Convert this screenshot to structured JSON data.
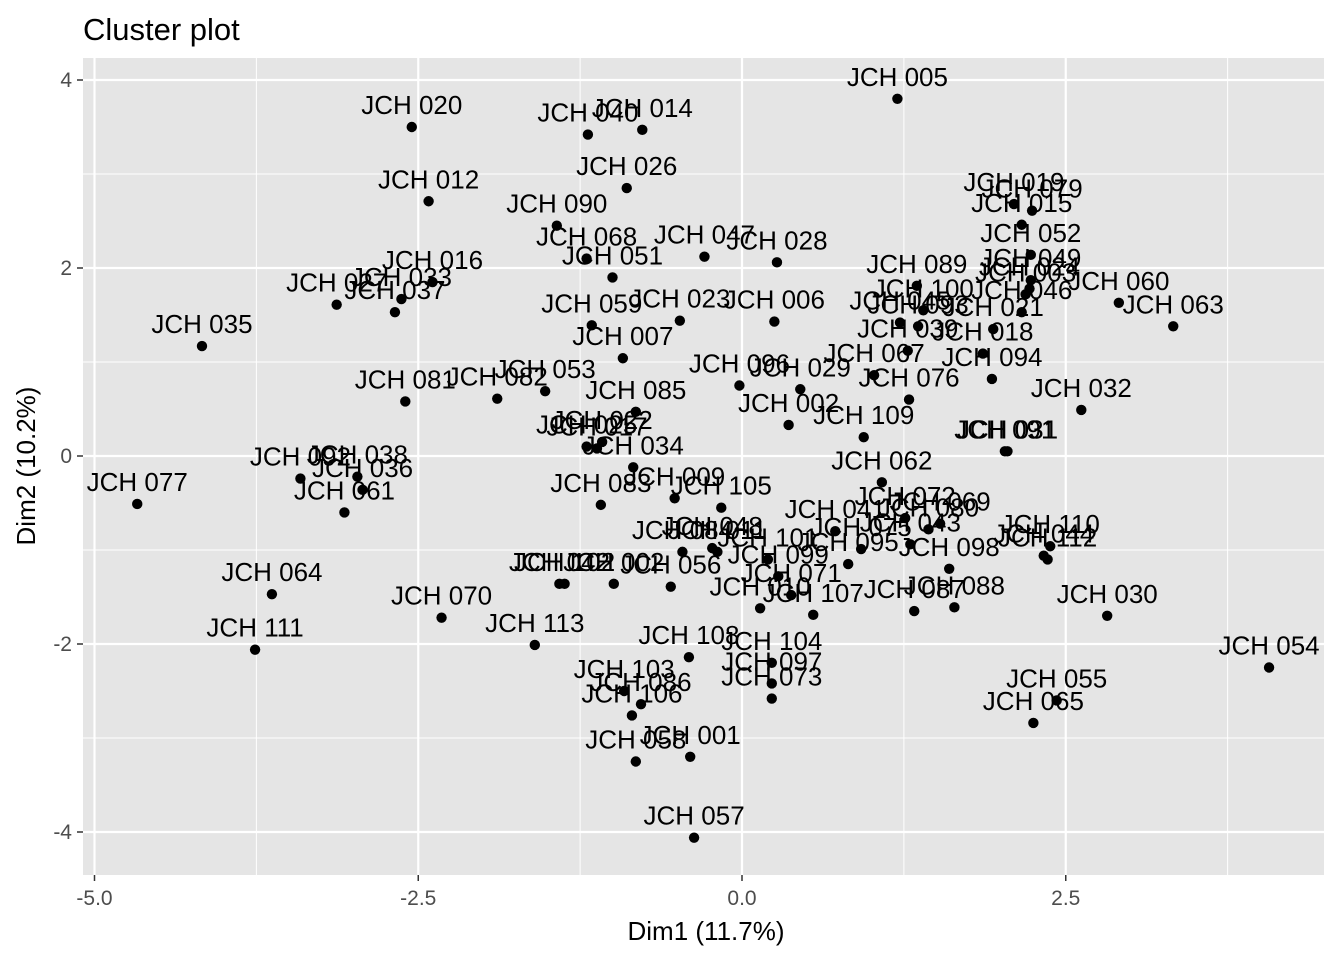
{
  "chart_data": {
    "type": "scatter",
    "title": "Cluster plot",
    "xlabel": "Dim1 (11.7%)",
    "ylabel": "Dim2 (10.2%)",
    "xlim": [
      -5.0,
      4.3
    ],
    "ylim": [
      -4.45,
      4.25
    ],
    "x_ticks": [
      -5.0,
      -2.5,
      0.0,
      2.5
    ],
    "x_tick_labels": [
      "-5.0",
      "-2.5",
      "0.0",
      "2.5"
    ],
    "y_ticks": [
      -4,
      -2,
      0,
      2,
      4
    ],
    "y_tick_labels": [
      "-4",
      "-2",
      "0",
      "2",
      "4"
    ],
    "grid": true,
    "panel_color": "#e5e5e5",
    "grid_color": "#ffffff",
    "point_color": "#000000",
    "points": [
      {
        "label": "JCH 005",
        "x": 1.2,
        "y": 3.8
      },
      {
        "label": "JCH 020",
        "x": -2.55,
        "y": 3.5
      },
      {
        "label": "JCH 014",
        "x": -0.77,
        "y": 3.47
      },
      {
        "label": "JCH 040",
        "x": -1.19,
        "y": 3.42
      },
      {
        "label": "JCH 026",
        "x": -0.89,
        "y": 2.85
      },
      {
        "label": "JCH 012",
        "x": -2.42,
        "y": 2.71
      },
      {
        "label": "JCH 019",
        "x": 2.1,
        "y": 2.68
      },
      {
        "label": "JCH 079",
        "x": 2.24,
        "y": 2.61
      },
      {
        "label": "JCH 015",
        "x": 2.16,
        "y": 2.46
      },
      {
        "label": "JCH 090",
        "x": -1.43,
        "y": 2.45
      },
      {
        "label": "JCH 052",
        "x": 2.23,
        "y": 2.14
      },
      {
        "label": "JCH 047",
        "x": -0.29,
        "y": 2.12
      },
      {
        "label": "JCH 068",
        "x": -1.2,
        "y": 2.1
      },
      {
        "label": "JCH 028",
        "x": 0.27,
        "y": 2.06
      },
      {
        "label": "JCH 049",
        "x": 2.23,
        "y": 1.87
      },
      {
        "label": "JCH 051",
        "x": -1.0,
        "y": 1.9
      },
      {
        "label": "JCH 016",
        "x": -2.39,
        "y": 1.85
      },
      {
        "label": "JCH 089",
        "x": 1.35,
        "y": 1.81
      },
      {
        "label": "JCH 024",
        "x": 2.22,
        "y": 1.78
      },
      {
        "label": "JCH 003",
        "x": 2.19,
        "y": 1.72
      },
      {
        "label": "JCH 033",
        "x": -2.63,
        "y": 1.67
      },
      {
        "label": "JCH 060",
        "x": 2.91,
        "y": 1.63
      },
      {
        "label": "JCH 027",
        "x": -3.13,
        "y": 1.61
      },
      {
        "label": "JCH 037",
        "x": -2.68,
        "y": 1.53
      },
      {
        "label": "JCH 100",
        "x": 1.4,
        "y": 1.55
      },
      {
        "label": "JCH 046",
        "x": 2.16,
        "y": 1.53
      },
      {
        "label": "JCH 023",
        "x": -0.48,
        "y": 1.44
      },
      {
        "label": "JCH 006",
        "x": 0.25,
        "y": 1.43
      },
      {
        "label": "JCH 045",
        "x": 1.22,
        "y": 1.42
      },
      {
        "label": "JCH 059",
        "x": -1.16,
        "y": 1.39
      },
      {
        "label": "JCH 063",
        "x": 3.33,
        "y": 1.38
      },
      {
        "label": "JCH 093",
        "x": 1.36,
        "y": 1.38
      },
      {
        "label": "JCH 021",
        "x": 1.94,
        "y": 1.35
      },
      {
        "label": "JCH 035",
        "x": -4.17,
        "y": 1.17
      },
      {
        "label": "JCH 039",
        "x": 1.28,
        "y": 1.12
      },
      {
        "label": "JCH 018",
        "x": 1.86,
        "y": 1.09
      },
      {
        "label": "JCH 007",
        "x": -0.92,
        "y": 1.04
      },
      {
        "label": "JCH 067",
        "x": 1.02,
        "y": 0.86
      },
      {
        "label": "JCH 053",
        "x": -1.52,
        "y": 0.69
      },
      {
        "label": "JCH 096",
        "x": -0.02,
        "y": 0.75
      },
      {
        "label": "JCH 094",
        "x": 1.93,
        "y": 0.82
      },
      {
        "label": "JCH 076",
        "x": 1.29,
        "y": 0.6
      },
      {
        "label": "JCH 032",
        "x": 2.62,
        "y": 0.49
      },
      {
        "label": "JCH 029",
        "x": 0.45,
        "y": 0.71
      },
      {
        "label": "JCH 081",
        "x": -2.6,
        "y": 0.58
      },
      {
        "label": "JCH 082",
        "x": -1.89,
        "y": 0.61
      },
      {
        "label": "JCH 085",
        "x": -0.82,
        "y": 0.47
      },
      {
        "label": "JCH 109",
        "x": 0.94,
        "y": 0.2
      },
      {
        "label": "JCH 025",
        "x": -1.2,
        "y": 0.1
      },
      {
        "label": "JCH 022",
        "x": -1.08,
        "y": 0.15
      },
      {
        "label": "JCH 017",
        "x": -1.12,
        "y": 0.08
      },
      {
        "label": "JCH 002",
        "x": 0.36,
        "y": 0.33
      },
      {
        "label": "JCH 091",
        "x": 2.03,
        "y": 0.05
      },
      {
        "label": "JCH 031",
        "x": 2.05,
        "y": 0.05
      },
      {
        "label": "JCH 092",
        "x": -3.41,
        "y": -0.24
      },
      {
        "label": "JCH 038",
        "x": -2.97,
        "y": -0.22
      },
      {
        "label": "JCH 036",
        "x": -2.93,
        "y": -0.36
      },
      {
        "label": "JCH 062",
        "x": 1.08,
        "y": -0.28
      },
      {
        "label": "JCH 034",
        "x": -0.84,
        "y": -0.12
      },
      {
        "label": "JCH 009",
        "x": -0.52,
        "y": -0.45
      },
      {
        "label": "JCH 077",
        "x": -4.67,
        "y": -0.51
      },
      {
        "label": "JCH 083",
        "x": -1.09,
        "y": -0.52
      },
      {
        "label": "JCH 061",
        "x": -3.07,
        "y": -0.6
      },
      {
        "label": "JCH 105",
        "x": -0.16,
        "y": -0.55
      },
      {
        "label": "JCH 072",
        "x": 1.26,
        "y": -0.66
      },
      {
        "label": "JCH 069",
        "x": 1.53,
        "y": -0.72
      },
      {
        "label": "JCH 080",
        "x": 1.44,
        "y": -0.78
      },
      {
        "label": "JCH 110",
        "x": 2.38,
        "y": -0.96
      },
      {
        "label": "JCH 048",
        "x": -0.23,
        "y": -0.98
      },
      {
        "label": "JCH 041",
        "x": 0.72,
        "y": -0.8
      },
      {
        "label": "JCH 043",
        "x": 1.3,
        "y": -0.94
      },
      {
        "label": "JCH 044",
        "x": 2.33,
        "y": -1.06
      },
      {
        "label": "JCH 112",
        "x": 2.36,
        "y": -1.1
      },
      {
        "label": "JCH 084",
        "x": -0.46,
        "y": -1.02
      },
      {
        "label": "JCH 075",
        "x": 0.92,
        "y": -0.99
      },
      {
        "label": "JCH 101",
        "x": 0.2,
        "y": -1.1
      },
      {
        "label": "JCH 011",
        "x": -0.19,
        "y": -1.02
      },
      {
        "label": "JCH 095",
        "x": 0.82,
        "y": -1.15
      },
      {
        "label": "JCH 042",
        "x": -1.41,
        "y": -1.36
      },
      {
        "label": "JCH 102",
        "x": -1.37,
        "y": -1.36
      },
      {
        "label": "JCH 002b",
        "x": -0.99,
        "y": -1.36
      },
      {
        "label": "JCH 056",
        "x": -0.55,
        "y": -1.39
      },
      {
        "label": "JCH 099",
        "x": 0.28,
        "y": -1.28
      },
      {
        "label": "JCH 098",
        "x": 1.6,
        "y": -1.2
      },
      {
        "label": "JCH 071",
        "x": 0.38,
        "y": -1.48
      },
      {
        "label": "JCH 107",
        "x": 0.55,
        "y": -1.69
      },
      {
        "label": "JCH 087",
        "x": 1.33,
        "y": -1.65
      },
      {
        "label": "JCH 088",
        "x": 1.64,
        "y": -1.61
      },
      {
        "label": "JCH 010",
        "x": 0.14,
        "y": -1.62
      },
      {
        "label": "JCH 030",
        "x": 2.82,
        "y": -1.7
      },
      {
        "label": "JCH 064",
        "x": -3.63,
        "y": -1.47
      },
      {
        "label": "JCH 070",
        "x": -2.32,
        "y": -1.72
      },
      {
        "label": "JCH 113",
        "x": -1.6,
        "y": -2.01
      },
      {
        "label": "JCH 111",
        "x": -3.76,
        "y": -2.06
      },
      {
        "label": "JCH 108",
        "x": -0.41,
        "y": -2.14
      },
      {
        "label": "JCH 104",
        "x": 0.23,
        "y": -2.2
      },
      {
        "label": "JCH 097",
        "x": 0.23,
        "y": -2.42
      },
      {
        "label": "JCH 073",
        "x": 0.23,
        "y": -2.58
      },
      {
        "label": "JCH 054",
        "x": 4.07,
        "y": -2.25
      },
      {
        "label": "JCH 103",
        "x": -0.91,
        "y": -2.5
      },
      {
        "label": "JCH 086",
        "x": -0.78,
        "y": -2.64
      },
      {
        "label": "JCH 106",
        "x": -0.85,
        "y": -2.76
      },
      {
        "label": "JCH 055",
        "x": 2.43,
        "y": -2.6
      },
      {
        "label": "JCH 065",
        "x": 2.25,
        "y": -2.84
      },
      {
        "label": "JCH 058",
        "x": -0.82,
        "y": -3.25
      },
      {
        "label": "JCH 001",
        "x": -0.4,
        "y": -3.2
      },
      {
        "label": "JCH 057",
        "x": -0.37,
        "y": -4.06
      }
    ]
  }
}
